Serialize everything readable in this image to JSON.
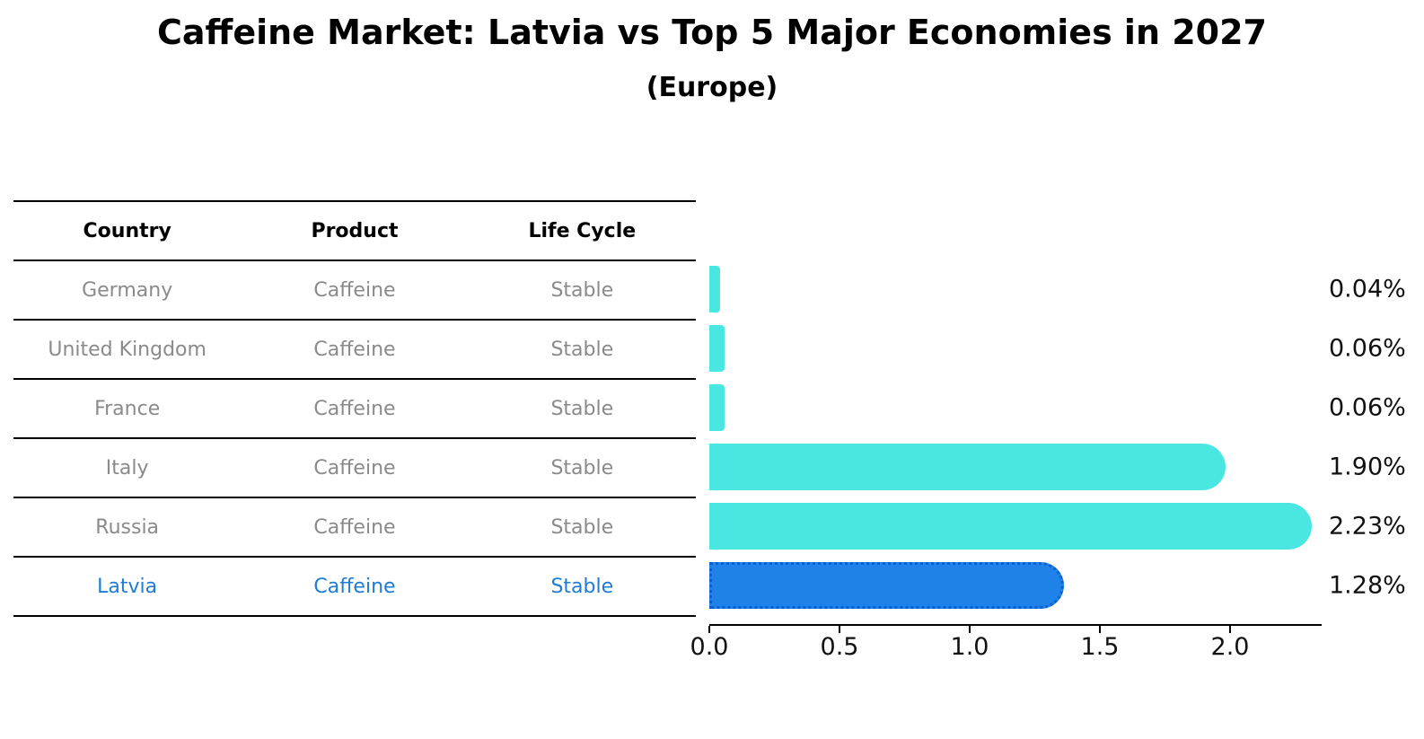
{
  "chart_data": {
    "type": "bar",
    "orientation": "horizontal",
    "title": "Caffeine Market: Latvia vs Top 5 Major Economies in 2027",
    "subtitle": "(Europe)",
    "xlabel": "",
    "ylabel": "",
    "categories": [
      "Germany",
      "United Kingdom",
      "France",
      "Italy",
      "Russia",
      "Latvia"
    ],
    "values": [
      0.04,
      0.06,
      0.06,
      1.9,
      2.23,
      1.28
    ],
    "value_labels": [
      "0.04%",
      "0.06%",
      "0.06%",
      "1.90%",
      "2.23%",
      "1.28%"
    ],
    "x_ticks": [
      0.0,
      0.5,
      1.0,
      1.5,
      2.0
    ],
    "x_tick_labels": [
      "0.0",
      "0.5",
      "1.0",
      "1.5",
      "2.0"
    ],
    "xlim": [
      0.0,
      2.35
    ],
    "grid": false,
    "legend": null,
    "bar_color": "#4ae6e2",
    "highlight_index": 5,
    "highlight_bar_color": "#1e82e8",
    "highlight_border_color": "#0b5fce"
  },
  "table": {
    "headers": [
      "Country",
      "Product",
      "Life Cycle"
    ],
    "rows": [
      {
        "country": "Germany",
        "product": "Caffeine",
        "life_cycle": "Stable",
        "highlighted": false
      },
      {
        "country": "United Kingdom",
        "product": "Caffeine",
        "life_cycle": "Stable",
        "highlighted": false
      },
      {
        "country": "France",
        "product": "Caffeine",
        "life_cycle": "Stable",
        "highlighted": false
      },
      {
        "country": "Italy",
        "product": "Caffeine",
        "life_cycle": "Stable",
        "highlighted": false
      },
      {
        "country": "Russia",
        "product": "Caffeine",
        "life_cycle": "Stable",
        "highlighted": false
      },
      {
        "country": "Latvia",
        "product": "Caffeine",
        "life_cycle": "Stable",
        "highlighted": true
      }
    ]
  },
  "colors": {
    "table_text_muted": "#8a8a8a",
    "table_text_highlight": "#1e7cd6",
    "heading_text": "#000000",
    "axis_line": "#000000"
  }
}
